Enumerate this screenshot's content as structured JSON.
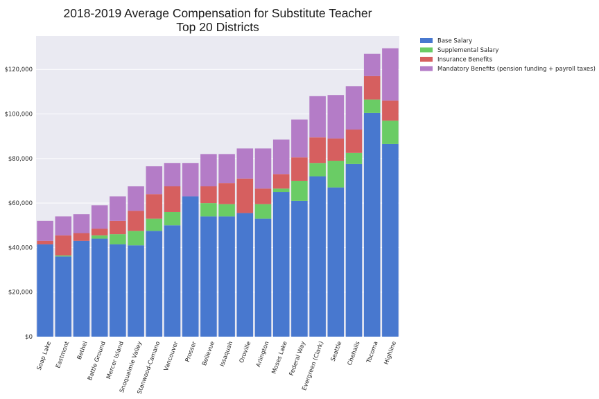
{
  "chart_data": {
    "type": "bar",
    "stacked": true,
    "title": "2018-2019 Average Compensation for Substitute Teacher\nTop 20 Districts",
    "xlabel": "",
    "ylabel": "",
    "ylim": [
      0,
      135000
    ],
    "yticks": [
      0,
      20000,
      40000,
      60000,
      80000,
      100000,
      120000
    ],
    "ytick_labels": [
      "$0",
      "$20,000",
      "$40,000",
      "$60,000",
      "$80,000",
      "$100,000",
      "$120,000"
    ],
    "grid": true,
    "legend_position": "outside-top-right",
    "categories": [
      "Soap Lake",
      "Eastmont",
      "Bethel",
      "Battle Ground",
      "Mercer Island",
      "Snoqualmie Valley",
      "Stanwood-Camano",
      "Vancouver",
      "Prosser",
      "Bellevue",
      "Issaquah",
      "Oroville",
      "Arlington",
      "Moses Lake",
      "Federal Way",
      "Evergreen (Clark)",
      "Seattle",
      "Chehalis",
      "Tacoma",
      "Highline"
    ],
    "series": [
      {
        "name": "Base Salary",
        "color": "#4878cf",
        "values": [
          41500,
          36000,
          43000,
          44000,
          41500,
          41000,
          47500,
          50000,
          63000,
          54000,
          54000,
          55500,
          53000,
          65000,
          61000,
          72000,
          67000,
          77500,
          100500,
          86500
        ]
      },
      {
        "name": "Supplemental Salary",
        "color": "#6acc65",
        "values": [
          0,
          500,
          0,
          1500,
          4500,
          6500,
          5500,
          6000,
          0,
          6000,
          5500,
          0,
          6500,
          1500,
          9000,
          6000,
          12000,
          5000,
          6000,
          10500
        ]
      },
      {
        "name": "Insurance Benefits",
        "color": "#d65f5f",
        "values": [
          1500,
          9000,
          3500,
          3000,
          6000,
          9000,
          11000,
          11500,
          0,
          7500,
          9500,
          15500,
          7000,
          6500,
          10500,
          11500,
          10000,
          10500,
          10500,
          9000
        ]
      },
      {
        "name": "Mandatory Benefits (pension funding + payroll taxes)",
        "color": "#b47cc7",
        "values": [
          9000,
          8500,
          8500,
          10500,
          11000,
          11000,
          12500,
          10500,
          15000,
          14500,
          13000,
          13500,
          18000,
          15500,
          17000,
          18500,
          19500,
          19500,
          10000,
          23500
        ]
      }
    ]
  }
}
